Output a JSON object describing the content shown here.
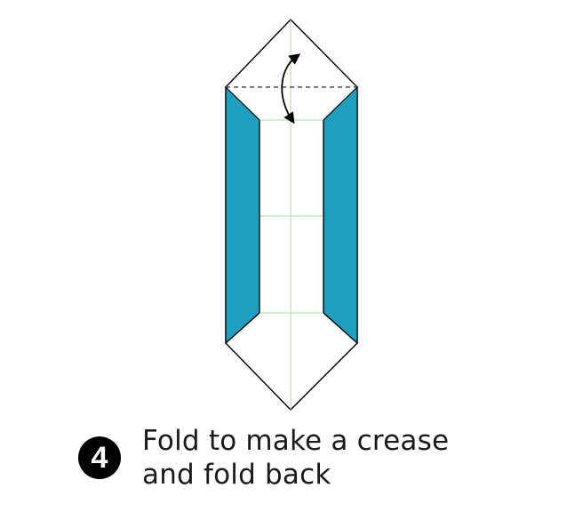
{
  "step": {
    "number": "4"
  },
  "instruction": {
    "line1": "Fold to make a crease",
    "line2": "and fold back"
  },
  "colors": {
    "paper_color": "#1e9fbf",
    "paper_white": "#ffffff",
    "outline": "#000000",
    "crease_guide": "#a8dca8",
    "fold_line": "#333333"
  },
  "icons": {
    "arrow": "curved-double-arrow-icon",
    "badge": "step-number-badge"
  }
}
